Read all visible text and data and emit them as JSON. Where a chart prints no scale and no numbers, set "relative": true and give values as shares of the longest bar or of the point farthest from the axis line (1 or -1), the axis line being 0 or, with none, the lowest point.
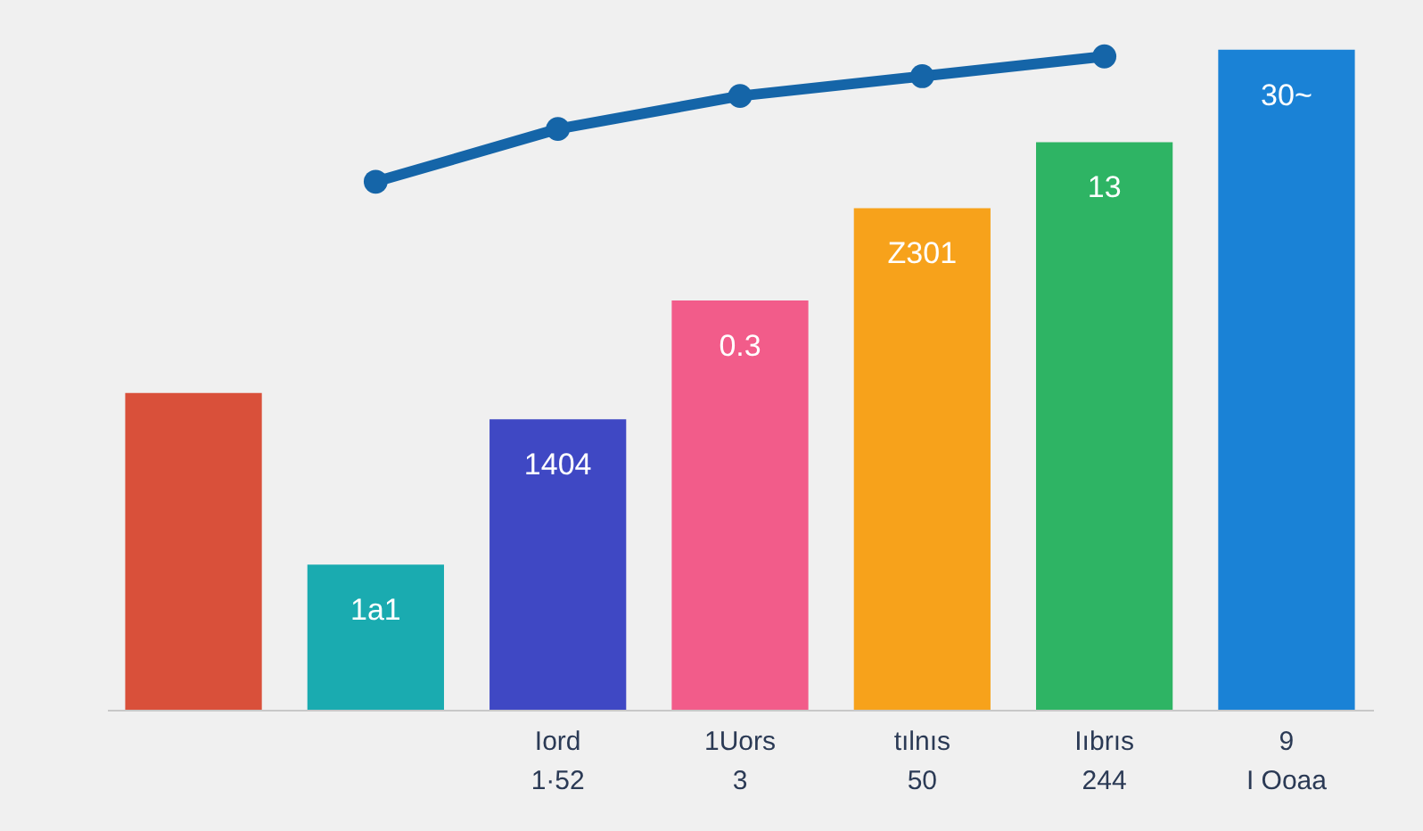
{
  "chart_data": {
    "type": "bar",
    "relative": true,
    "categories": [
      null,
      null,
      "Iord\n1·52",
      "1Uors\n3",
      "tılnıs\n50",
      "Iıbrıs\n244",
      "9\nI Ooaa"
    ],
    "marker": "circle",
    "annotations": [
      {
        "text": "1a1",
        "y": 0.22
      },
      {
        "text": "1404",
        "x": "Iord\n1·52",
        "y": 0.44
      },
      {
        "text": "0.3",
        "x": "1Uors\n3",
        "y": 0.62
      },
      {
        "text": "Z301",
        "x": "tılnıs\n50",
        "y": 0.76
      },
      {
        "text": "13",
        "x": "Iıbrıs\n244",
        "y": 0.86
      },
      {
        "text": "30~",
        "x": "9\nI Ooaa",
        "y": 1
      }
    ],
    "series": [
      {
        "colors": [
          "#d9503a",
          "#1aabb0",
          "#3f48c4",
          "#f25c8a",
          "#f7a21b",
          "#2eb464",
          "#1a82d6"
        ],
        "values": [
          0.48,
          0.22,
          0.44,
          0.62,
          0.76,
          0.86,
          1
        ]
      },
      {
        "type": "line",
        "color": "#1565a8",
        "values": [
          null,
          0.8,
          0.88,
          0.93,
          0.96,
          0.99,
          null
        ]
      }
    ]
  }
}
